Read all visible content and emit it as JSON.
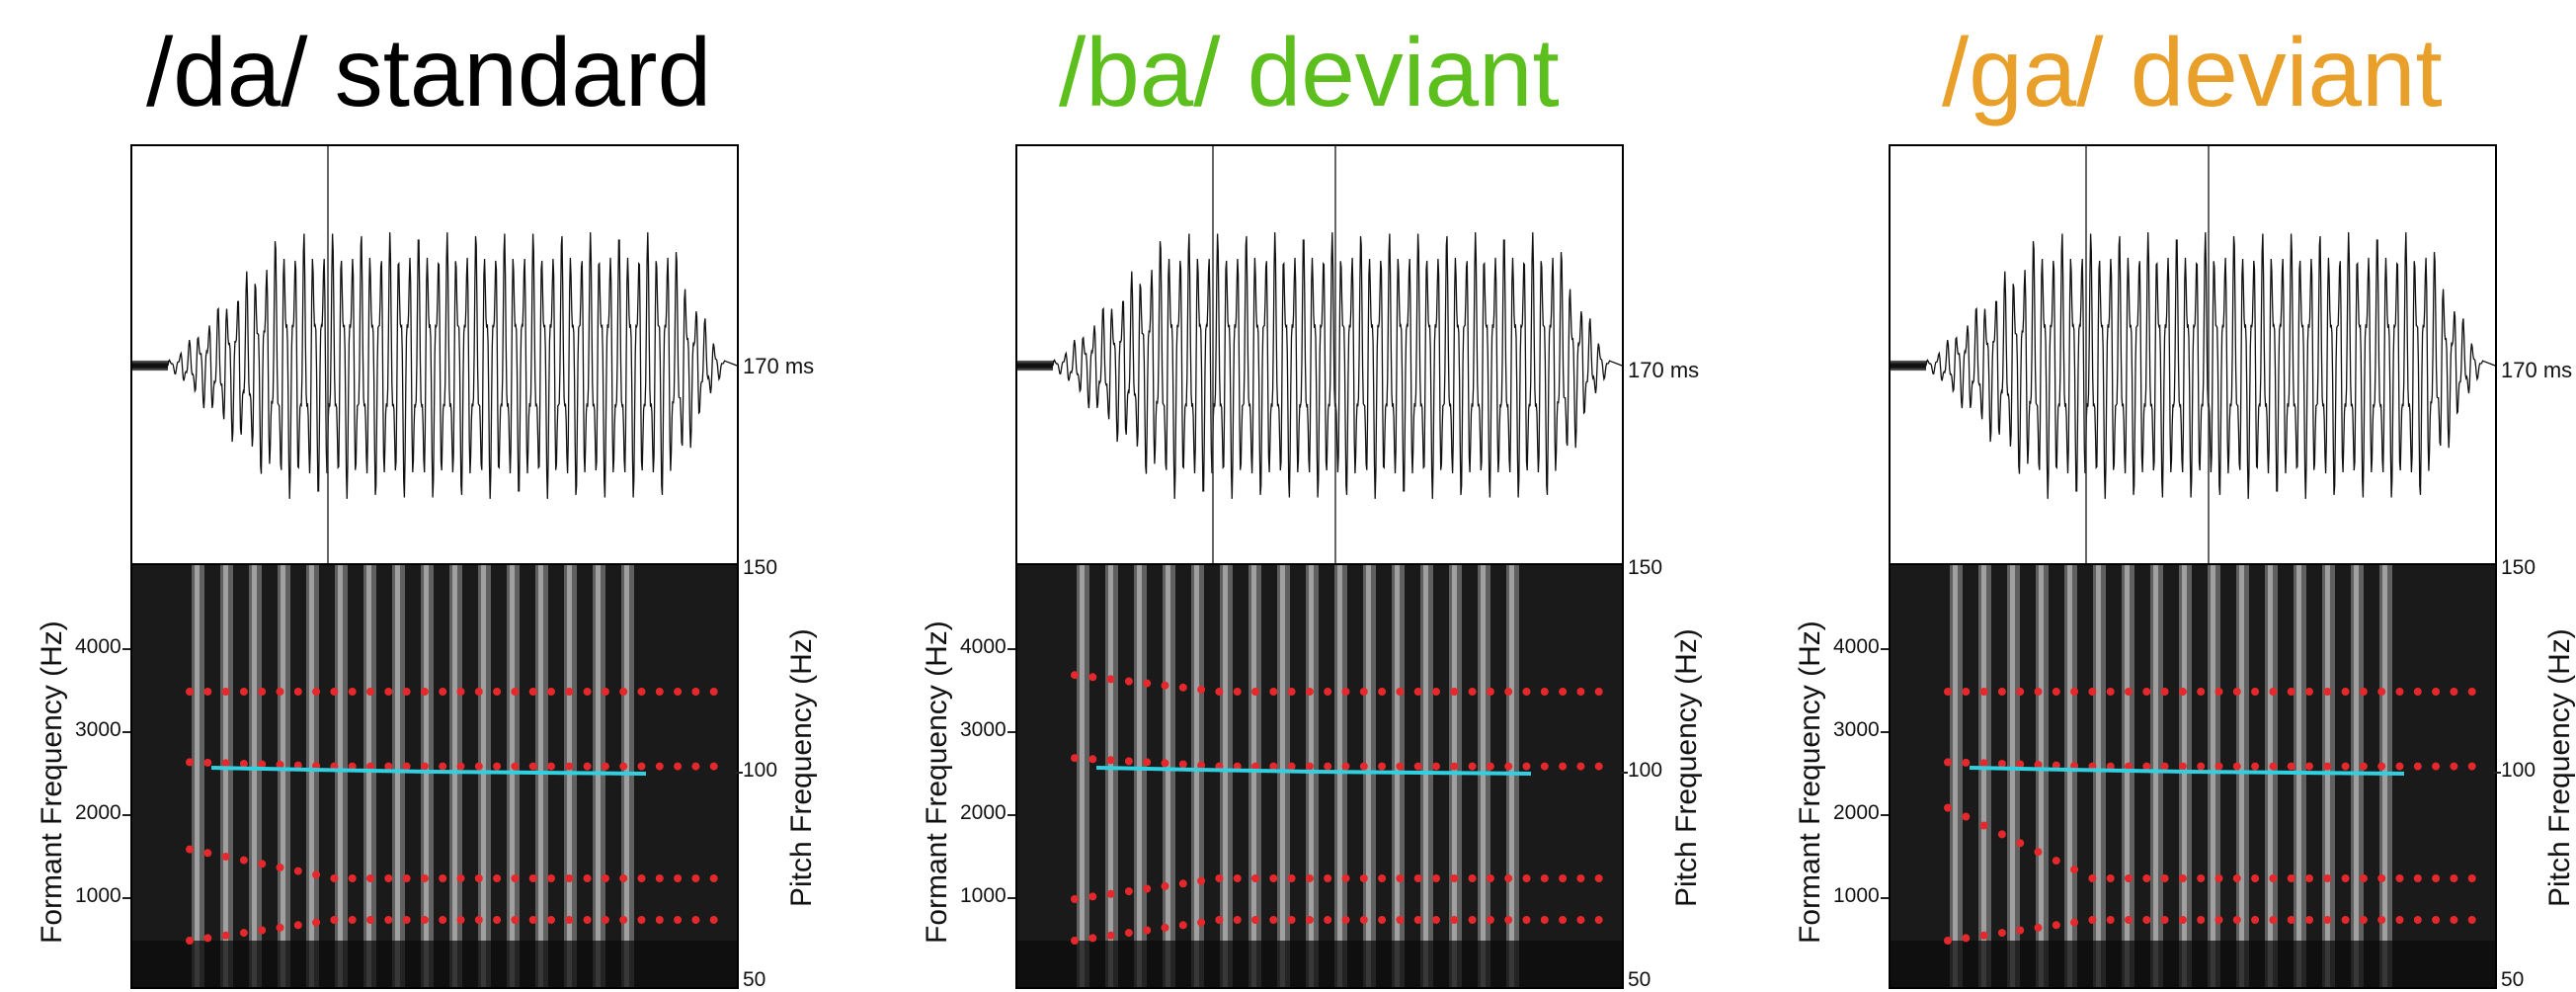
{
  "panels": [
    {
      "title": "/da/ standard",
      "title_color": "#000000",
      "duration_label": "170 ms",
      "formant_axis_label": "Formant Frequency (Hz)",
      "pitch_axis_label": "Pitch Frequency (Hz)",
      "formant_ticks": [
        "4000",
        "3000",
        "2000",
        "1000"
      ],
      "pitch_ticks": [
        "150",
        "100",
        "50"
      ],
      "formants_hz": {
        "F4": [
          3500,
          3500
        ],
        "F3": [
          2650,
          2600
        ],
        "F2": [
          1600,
          1250
        ],
        "F1": [
          500,
          750
        ]
      }
    },
    {
      "title": "/ba/ deviant",
      "title_color": "#5cbf1e",
      "duration_label": "170 ms",
      "formant_axis_label": "Formant Frequency (Hz)",
      "pitch_axis_label": "Pitch Frequency (Hz)",
      "formant_ticks": [
        "4000",
        "3000",
        "2000",
        "1000"
      ],
      "pitch_ticks": [
        "150",
        "100",
        "50"
      ],
      "formants_hz": {
        "F4": [
          3700,
          3500
        ],
        "F3": [
          2700,
          2600
        ],
        "F2": [
          1000,
          1250
        ],
        "F1": [
          500,
          750
        ]
      }
    },
    {
      "title": "/ga/ deviant",
      "title_color": "#e9a02a",
      "duration_label": "170 ms",
      "formant_axis_label": "Formant Frequency (Hz)",
      "pitch_axis_label": "Pitch Frequency (Hz)",
      "formant_ticks": [
        "4000",
        "3000",
        "2000",
        "1000"
      ],
      "pitch_ticks": [
        "150",
        "100",
        "50"
      ],
      "formants_hz": {
        "F4": [
          3500,
          3500
        ],
        "F3": [
          2650,
          2600
        ],
        "F2": [
          2100,
          1250
        ],
        "F1": [
          500,
          750
        ]
      }
    }
  ],
  "colors": {
    "formant_dots": "#e5282b",
    "pitch_line": "#30d0e0",
    "waveform": "#111111"
  }
}
